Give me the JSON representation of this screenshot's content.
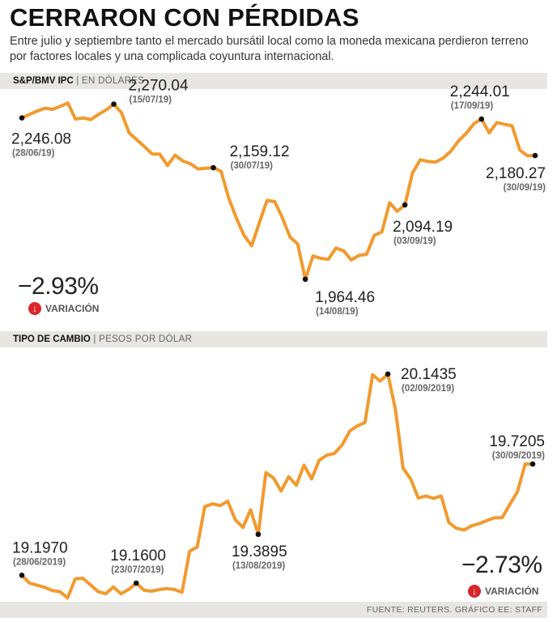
{
  "title": "CERRARON CON PÉRDIDAS",
  "subtitle": "Entre julio y septiembre tanto el mercado bursátil local como la moneda mexicana perdieron terreno por factores locales y una complicada coyuntura internacional.",
  "source": "FUENTE: REUTERS. GRÁFICO EE: STAFF",
  "colors": {
    "line": "#f29a2e",
    "negative": "#d9262c"
  },
  "chart_data": [
    {
      "type": "line",
      "title": "S&P/BMV IPC",
      "subtitle": "EN DÓLARES",
      "variation_value": "−2.93%",
      "variation_label": "VARIACIÓN",
      "ylim": [
        1950,
        2285
      ],
      "values": [
        2246.08,
        2252,
        2258,
        2263,
        2261,
        2266,
        2272,
        2244,
        2246,
        2243,
        2252,
        2260,
        2270.04,
        2255,
        2220,
        2208,
        2196,
        2183,
        2183,
        2163,
        2181,
        2171,
        2166,
        2157,
        2158,
        2159.12,
        2153,
        2106,
        2071,
        2041,
        2023,
        2063,
        2102,
        2100,
        2072,
        2038,
        2026,
        1964.46,
        2005,
        2001,
        1999,
        2019,
        2014,
        1998,
        2006,
        2008,
        2041,
        2047,
        2098,
        2083,
        2094.19,
        2150,
        2173,
        2170,
        2169,
        2176,
        2188,
        2206,
        2219,
        2236,
        2244.01,
        2220,
        2238,
        2235,
        2232,
        2190,
        2180,
        2180.27
      ],
      "points": [
        {
          "i": 0,
          "value": "2,246.08",
          "date": "(28/06/19)"
        },
        {
          "i": 12,
          "value": "2,270.04",
          "date": "(15/07/19)"
        },
        {
          "i": 25,
          "value": "2,159.12",
          "date": "(30/07/19)"
        },
        {
          "i": 37,
          "value": "1,964.46",
          "date": "(14/08/19)"
        },
        {
          "i": 50,
          "value": "2,094.19",
          "date": "(03/09/19)"
        },
        {
          "i": 60,
          "value": "2,244.01",
          "date": "(17/09/19)"
        },
        {
          "i": 67,
          "value": "2,180.27",
          "date": "(30/09/19)"
        }
      ]
    },
    {
      "type": "line",
      "title": "TIPO DE CAMBIO",
      "subtitle": "PESOS POR DÓLAR",
      "variation_value": "−2.73%",
      "variation_label": "VARIACIÓN",
      "ylim": [
        19.08,
        20.2
      ],
      "values": [
        19.197,
        19.16,
        19.15,
        19.14,
        19.125,
        19.12,
        19.09,
        19.18,
        19.183,
        19.152,
        19.12,
        19.11,
        19.142,
        19.11,
        19.13,
        19.16,
        19.127,
        19.122,
        19.13,
        19.134,
        19.13,
        19.117,
        19.31,
        19.33,
        19.52,
        19.533,
        19.525,
        19.545,
        19.458,
        19.422,
        19.505,
        19.3895,
        19.68,
        19.655,
        19.593,
        19.66,
        19.62,
        19.715,
        19.65,
        19.738,
        19.762,
        19.77,
        19.81,
        19.875,
        19.9,
        19.915,
        20.14,
        20.11,
        20.1435,
        19.976,
        19.7,
        19.65,
        19.56,
        19.57,
        19.559,
        19.57,
        19.445,
        19.418,
        19.41,
        19.43,
        19.44,
        19.455,
        19.467,
        19.468,
        19.53,
        19.59,
        19.72,
        19.7205
      ],
      "points": [
        {
          "i": 0,
          "value": "19.1970",
          "date": "(28/06/2019)"
        },
        {
          "i": 15,
          "value": "19.1600",
          "date": "(23/07/2019)"
        },
        {
          "i": 31,
          "value": "19.3895",
          "date": "(13/08/2019)"
        },
        {
          "i": 48,
          "value": "20.1435",
          "date": "(02/09/2019)"
        },
        {
          "i": 67,
          "value": "19.7205",
          "date": "(30/09/2019)"
        }
      ]
    }
  ]
}
